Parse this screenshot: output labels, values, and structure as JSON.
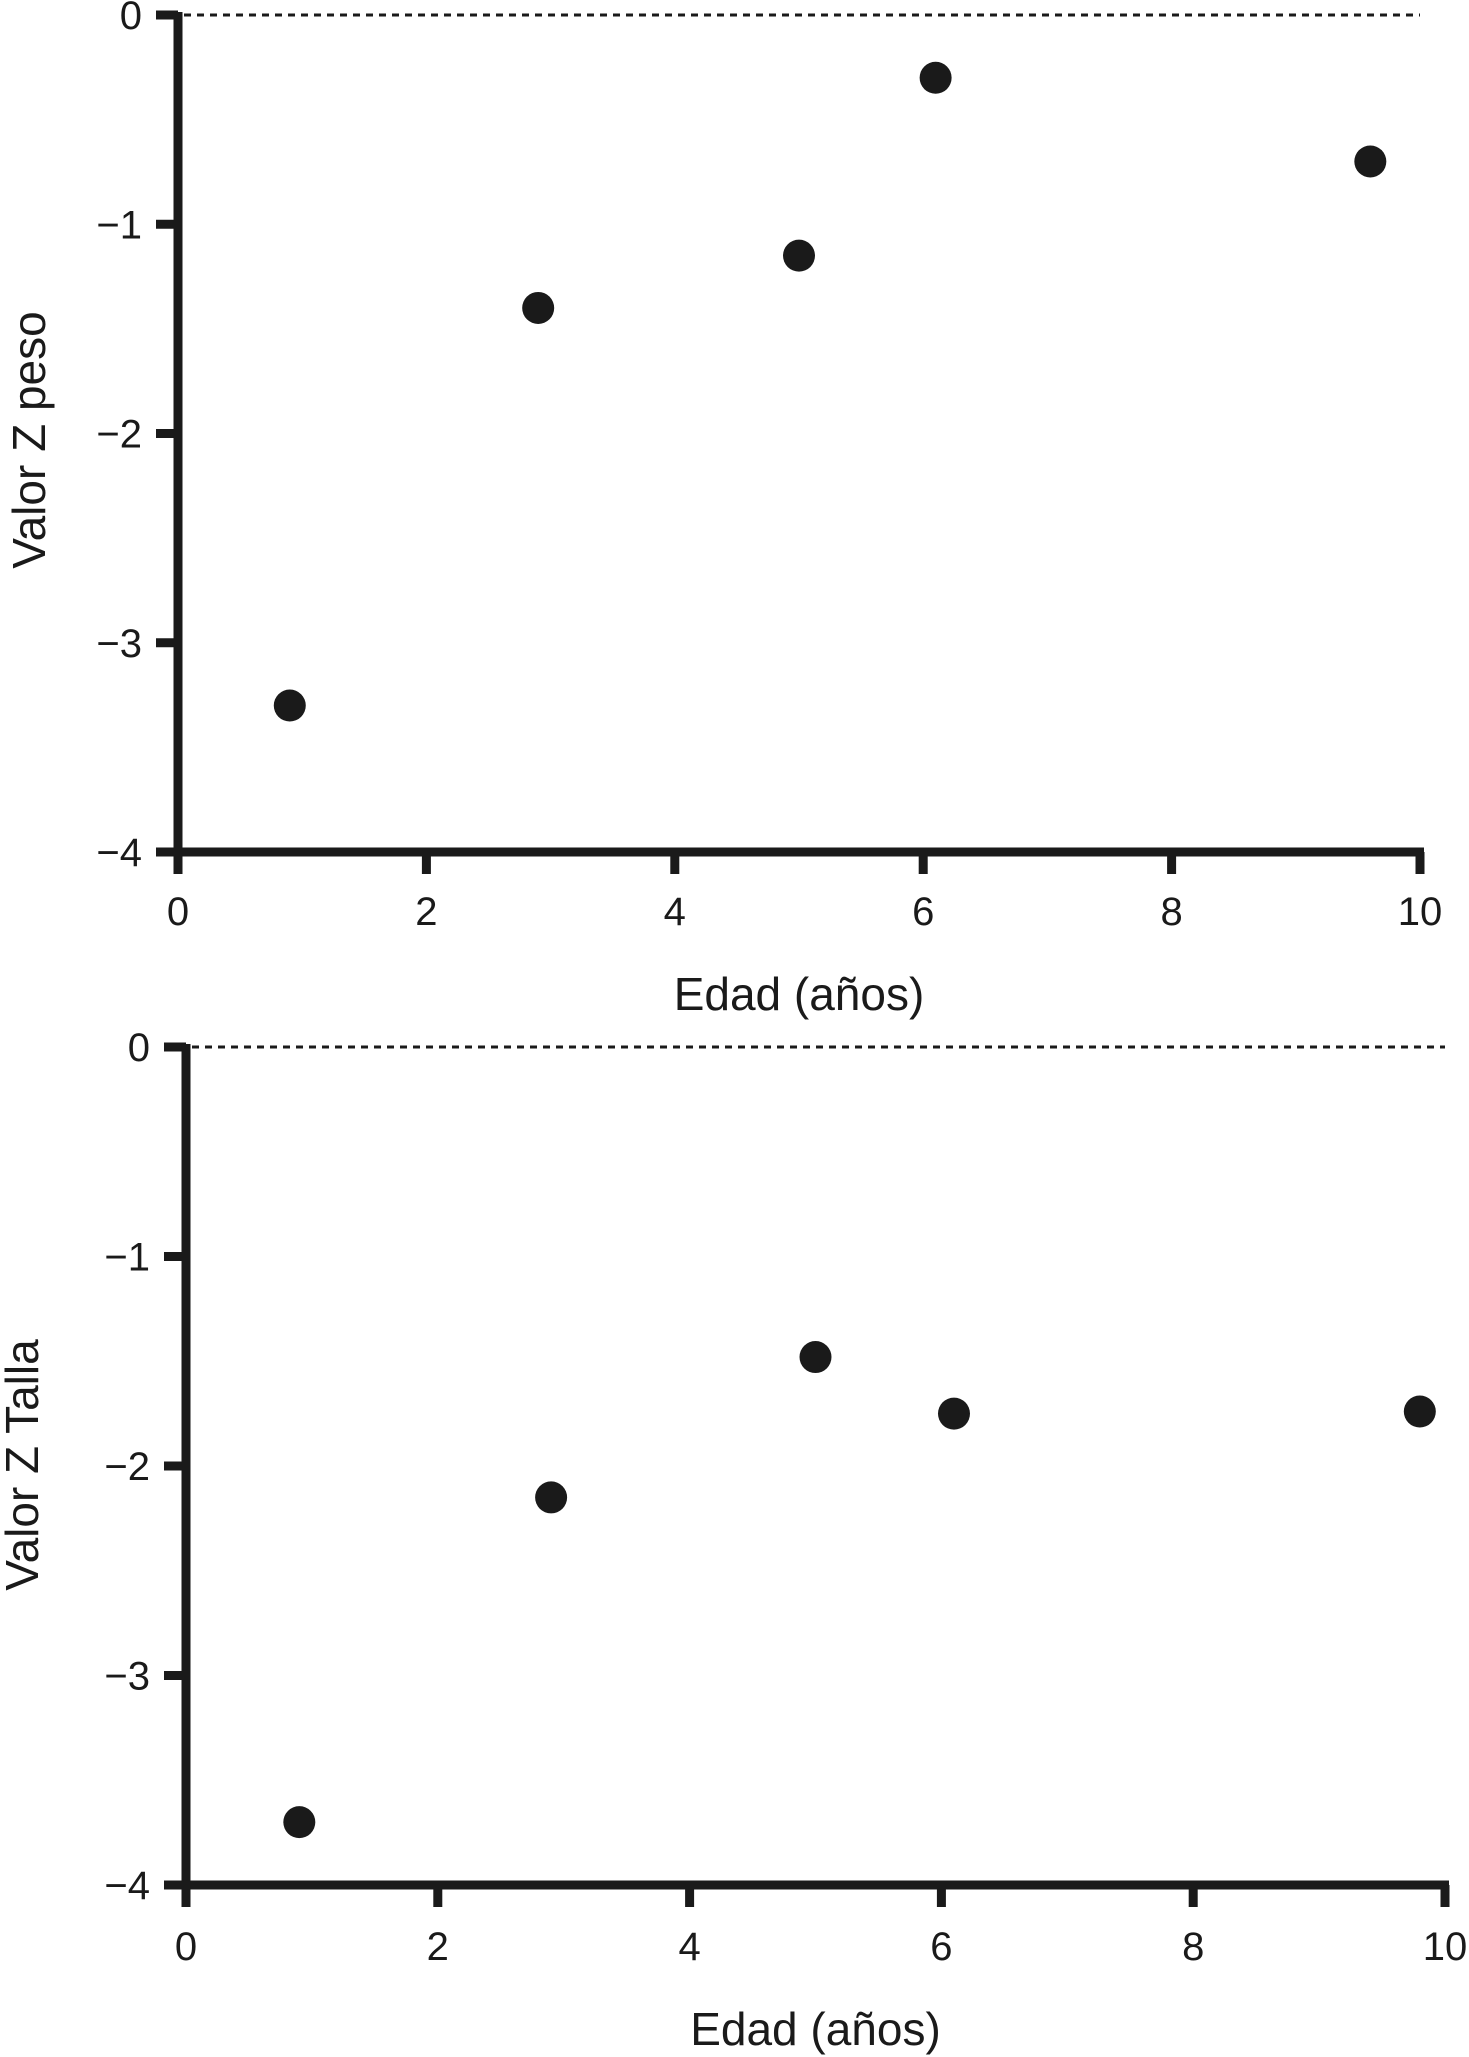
{
  "chart_data": [
    {
      "type": "scatter",
      "xlabel": "Edad (años)",
      "ylabel": "Valor Z peso",
      "xlim": [
        0,
        10
      ],
      "ylim": [
        -4,
        0
      ],
      "xticks": [
        "0",
        "2",
        "4",
        "6",
        "8",
        "10"
      ],
      "yticks": [
        "0",
        "−1",
        "−2",
        "−3",
        "−4"
      ],
      "reference_line": {
        "y": 0,
        "style": "dashed"
      },
      "grid": false,
      "point_color": "#1a1a1a",
      "x": [
        0.9,
        2.9,
        5.0,
        6.1,
        9.6
      ],
      "y": [
        -3.3,
        -1.4,
        -1.15,
        -0.3,
        -0.7
      ]
    },
    {
      "type": "scatter",
      "xlabel": "Edad (años)",
      "ylabel": "Valor Z Talla",
      "xlim": [
        0,
        10
      ],
      "ylim": [
        -4,
        0
      ],
      "xticks": [
        "0",
        "2",
        "4",
        "6",
        "8",
        "10"
      ],
      "yticks": [
        "0",
        "−1",
        "−2",
        "−3",
        "−4"
      ],
      "reference_line": {
        "y": 0,
        "style": "dashed"
      },
      "grid": false,
      "point_color": "#1a1a1a",
      "x": [
        0.9,
        2.9,
        5.0,
        6.1,
        9.8
      ],
      "y": [
        -3.7,
        -2.15,
        -1.48,
        -1.75,
        -1.74
      ]
    }
  ]
}
